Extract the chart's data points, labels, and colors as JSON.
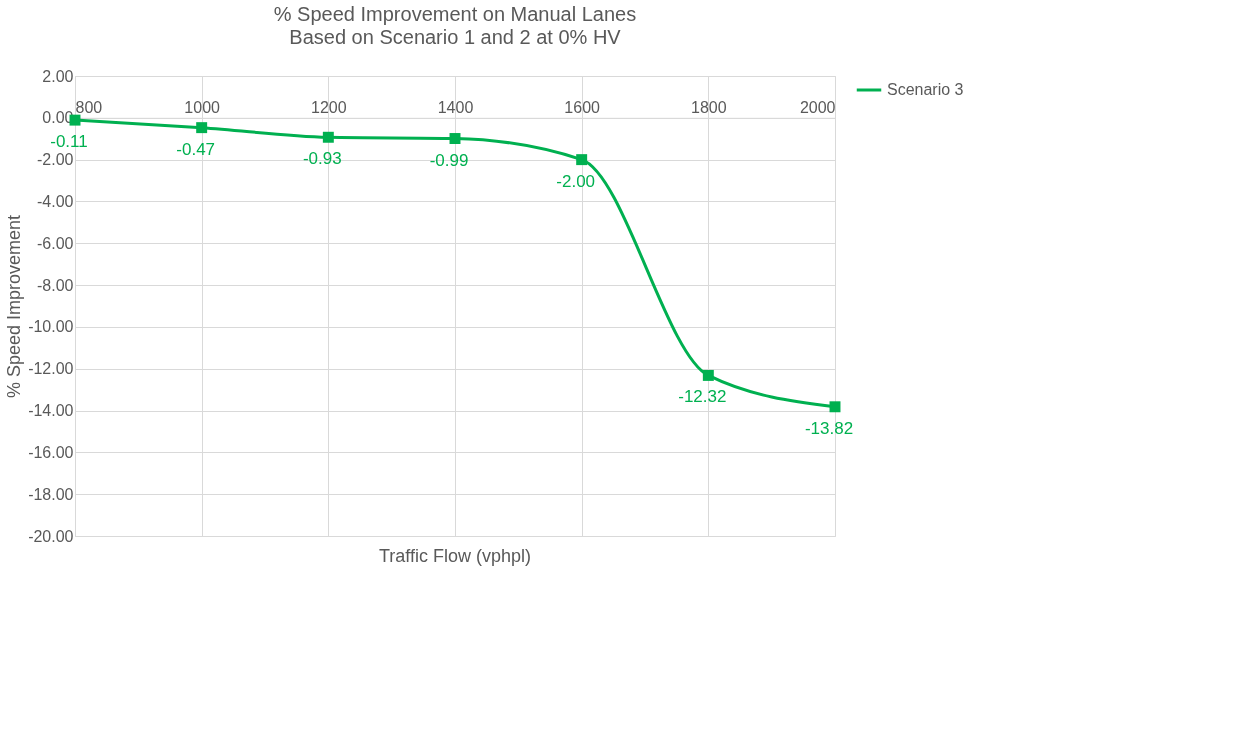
{
  "chart_data": {
    "type": "line",
    "title": "%  Speed Improvement on Manual Lanes",
    "subtitle": "Based on Scenario 1 and 2 at 0% HV",
    "xlabel": "Traffic Flow (vphpl)",
    "ylabel": "% Speed Improvement",
    "x": [
      800,
      1000,
      1200,
      1400,
      1600,
      1800,
      2000
    ],
    "series": [
      {
        "name": "Scenario 3",
        "color": "#00b050",
        "values": [
          -0.11,
          -0.47,
          -0.93,
          -0.99,
          -2.0,
          -12.32,
          -13.82
        ]
      }
    ],
    "xlim": [
      800,
      2000
    ],
    "xticks": [
      800,
      1000,
      1200,
      1400,
      1600,
      1800,
      2000
    ],
    "ylim": [
      -20,
      2
    ],
    "yticks": [
      {
        "value": 2,
        "label": "2.00"
      },
      {
        "value": 0,
        "label": "0.00"
      },
      {
        "value": -2,
        "label": "-2.00"
      },
      {
        "value": -4,
        "label": "-4.00"
      },
      {
        "value": -6,
        "label": "-6.00"
      },
      {
        "value": -8,
        "label": "-8.00"
      },
      {
        "value": -10,
        "label": "-10.00"
      },
      {
        "value": -12,
        "label": "-12.00"
      },
      {
        "value": -14,
        "label": "-14.00"
      },
      {
        "value": -16,
        "label": "-16.00"
      },
      {
        "value": -18,
        "label": "-18.00"
      },
      {
        "value": -20,
        "label": "-20.00"
      }
    ],
    "value_labels": [
      "-0.11",
      "-0.47",
      "-0.93",
      "-0.99",
      "-2.00",
      "-12.32",
      "-13.82"
    ],
    "grid": true,
    "legend": "right",
    "marker": "square",
    "line_style": "solid"
  }
}
